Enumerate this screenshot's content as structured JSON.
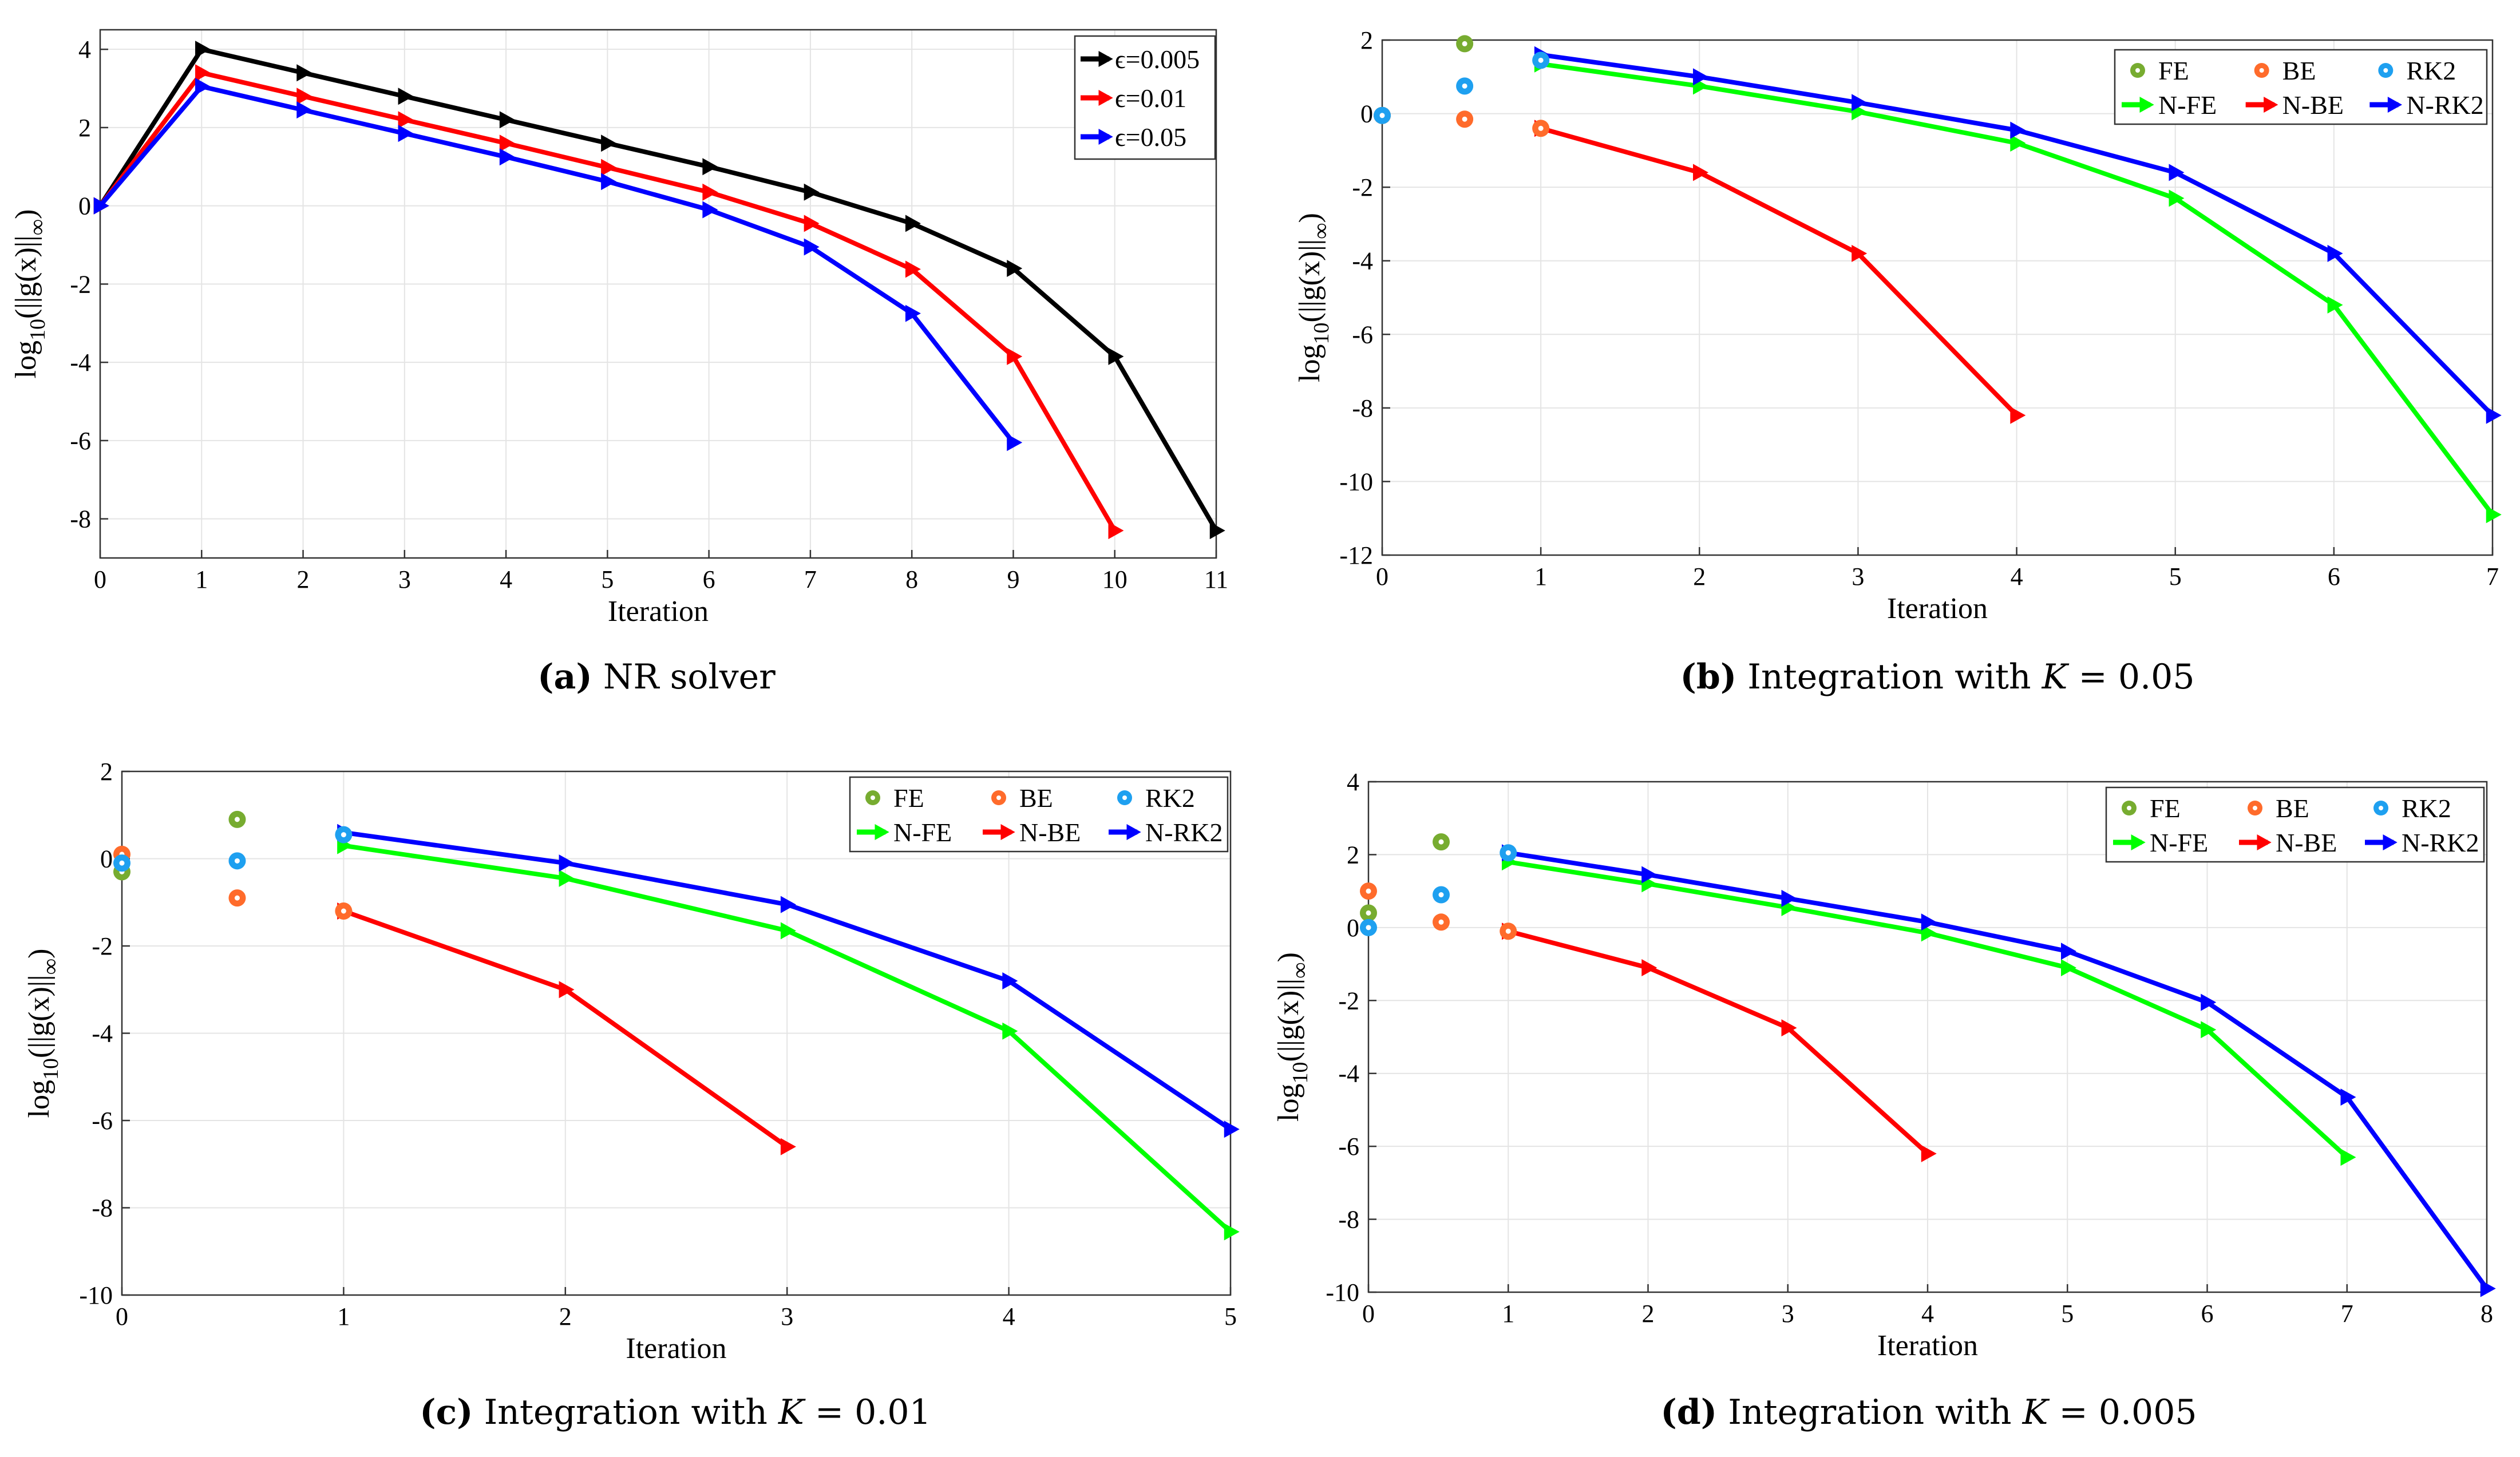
{
  "chart_data": [
    {
      "id": "a",
      "type": "line",
      "caption": {
        "label": "(a)",
        "text": " NR solver"
      },
      "xlabel": "Iteration",
      "ylabel": "log10(||g(x)||∞)",
      "xlim": [
        0,
        11
      ],
      "ylim": [
        -9,
        4.5
      ],
      "xticks": [
        0,
        1,
        2,
        3,
        4,
        5,
        6,
        7,
        8,
        9,
        10,
        11
      ],
      "yticks": [
        -8,
        -6,
        -4,
        -2,
        0,
        2,
        4
      ],
      "legend_position": "top-right",
      "legend_columns": 1,
      "series": [
        {
          "name": "ϵ=0.005",
          "color": "#000000",
          "marker": "triangle",
          "x": [
            0,
            1,
            2,
            3,
            4,
            5,
            6,
            7,
            8,
            9,
            10,
            11
          ],
          "y": [
            0,
            4.0,
            3.4,
            2.8,
            2.2,
            1.6,
            1.0,
            0.35,
            -0.45,
            -1.6,
            -3.85,
            -8.3
          ]
        },
        {
          "name": "ϵ=0.01",
          "color": "#ff0000",
          "marker": "triangle",
          "x": [
            0,
            1,
            2,
            3,
            4,
            5,
            6,
            7,
            8,
            9,
            10
          ],
          "y": [
            0,
            3.4,
            2.8,
            2.2,
            1.6,
            0.98,
            0.35,
            -0.45,
            -1.62,
            -3.85,
            -8.3
          ]
        },
        {
          "name": "ϵ=0.05",
          "color": "#0000ff",
          "marker": "triangle",
          "x": [
            0,
            1,
            2,
            3,
            4,
            5,
            6,
            7,
            8,
            9
          ],
          "y": [
            0,
            3.05,
            2.45,
            1.85,
            1.25,
            0.62,
            -0.1,
            -1.05,
            -2.75,
            -6.05
          ]
        }
      ]
    },
    {
      "id": "b",
      "type": "line",
      "caption": {
        "label": "(b)",
        "text": " Integration with ",
        "kvar": "K",
        "value": " = 0.05"
      },
      "xlabel": "Iteration",
      "ylabel": "log10(||g(x)||∞)",
      "xlim": [
        0,
        7
      ],
      "ylim": [
        -12,
        2
      ],
      "xticks": [
        0,
        1,
        2,
        3,
        4,
        5,
        6,
        7
      ],
      "yticks": [
        -12,
        -10,
        -8,
        -6,
        -4,
        -2,
        0,
        2
      ],
      "legend_position": "top-right",
      "legend_columns": 3,
      "scatter": [
        {
          "name": "FE",
          "color": "#77ac30",
          "x": [
            0.0,
            0.52
          ],
          "y": [
            -0.05,
            1.9
          ]
        },
        {
          "name": "BE",
          "color": "#ff6b2b",
          "x": [
            0.0,
            0.52,
            1.0
          ],
          "y": [
            -0.05,
            -0.15,
            -0.4
          ]
        },
        {
          "name": "RK2",
          "color": "#1ea0f0",
          "x": [
            0.0,
            0.52,
            1.0
          ],
          "y": [
            -0.05,
            0.75,
            1.45
          ]
        }
      ],
      "series": [
        {
          "name": "N-FE",
          "color": "#00ff00",
          "marker": "triangle",
          "x": [
            1,
            2,
            3,
            4,
            5,
            6,
            7
          ],
          "y": [
            1.35,
            0.75,
            0.05,
            -0.8,
            -2.3,
            -5.2,
            -10.9
          ]
        },
        {
          "name": "N-BE",
          "color": "#ff0000",
          "marker": "triangle",
          "x": [
            1,
            2,
            3,
            4
          ],
          "y": [
            -0.4,
            -1.6,
            -3.8,
            -8.2
          ]
        },
        {
          "name": "N-RK2",
          "color": "#0000ff",
          "marker": "triangle",
          "x": [
            1,
            2,
            3,
            4,
            5,
            6,
            7
          ],
          "y": [
            1.6,
            1.0,
            0.3,
            -0.45,
            -1.6,
            -3.8,
            -8.2
          ]
        }
      ]
    },
    {
      "id": "c",
      "type": "line",
      "caption": {
        "label": "(c)",
        "text": " Integration with ",
        "kvar": "K",
        "value": " = 0.01"
      },
      "xlabel": "Iteration",
      "ylabel": "log10(||g(x)||∞)",
      "xlim": [
        0,
        5
      ],
      "ylim": [
        -10,
        2
      ],
      "xticks": [
        0,
        1,
        2,
        3,
        4,
        5
      ],
      "yticks": [
        -10,
        -8,
        -6,
        -4,
        -2,
        0,
        2
      ],
      "legend_position": "top-right",
      "legend_columns": 3,
      "scatter": [
        {
          "name": "FE",
          "color": "#77ac30",
          "x": [
            0.0,
            0.52
          ],
          "y": [
            -0.3,
            0.9
          ]
        },
        {
          "name": "BE",
          "color": "#ff6b2b",
          "x": [
            0.0,
            0.52,
            1.0
          ],
          "y": [
            0.1,
            -0.9,
            -1.2
          ]
        },
        {
          "name": "RK2",
          "color": "#1ea0f0",
          "x": [
            0.0,
            0.52,
            1.0
          ],
          "y": [
            -0.1,
            -0.05,
            0.55
          ]
        }
      ],
      "series": [
        {
          "name": "N-FE",
          "color": "#00ff00",
          "marker": "triangle",
          "x": [
            1,
            2,
            3,
            4,
            5
          ],
          "y": [
            0.3,
            -0.45,
            -1.65,
            -3.95,
            -8.55
          ]
        },
        {
          "name": "N-BE",
          "color": "#ff0000",
          "marker": "triangle",
          "x": [
            1,
            2,
            3
          ],
          "y": [
            -1.2,
            -3.0,
            -6.6
          ]
        },
        {
          "name": "N-RK2",
          "color": "#0000ff",
          "marker": "triangle",
          "x": [
            1,
            2,
            3,
            4,
            5
          ],
          "y": [
            0.6,
            -0.1,
            -1.05,
            -2.8,
            -6.2
          ]
        }
      ]
    },
    {
      "id": "d",
      "type": "line",
      "caption": {
        "label": "(d)",
        "text": " Integration with ",
        "kvar": "K",
        "value": " = 0.005"
      },
      "xlabel": "Iteration",
      "ylabel": "log10(||g(x)||∞)",
      "xlim": [
        0,
        8
      ],
      "ylim": [
        -10,
        4
      ],
      "xticks": [
        0,
        1,
        2,
        3,
        4,
        5,
        6,
        7,
        8
      ],
      "yticks": [
        -10,
        -8,
        -6,
        -4,
        -2,
        0,
        2,
        4
      ],
      "legend_position": "top-right",
      "legend_columns": 3,
      "scatter": [
        {
          "name": "FE",
          "color": "#77ac30",
          "x": [
            0.0,
            0.52
          ],
          "y": [
            0.4,
            2.35
          ]
        },
        {
          "name": "BE",
          "color": "#ff6b2b",
          "x": [
            0.0,
            0.52,
            1.0
          ],
          "y": [
            1.0,
            0.15,
            -0.1
          ]
        },
        {
          "name": "RK2",
          "color": "#1ea0f0",
          "x": [
            0.0,
            0.52,
            1.0
          ],
          "y": [
            0.0,
            0.9,
            2.05
          ]
        }
      ],
      "series": [
        {
          "name": "N-FE",
          "color": "#00ff00",
          "marker": "triangle",
          "x": [
            1,
            2,
            3,
            4,
            5,
            6,
            7
          ],
          "y": [
            1.8,
            1.2,
            0.55,
            -0.15,
            -1.1,
            -2.8,
            -6.3
          ]
        },
        {
          "name": "N-BE",
          "color": "#ff0000",
          "marker": "triangle",
          "x": [
            1,
            2,
            3,
            4
          ],
          "y": [
            -0.1,
            -1.1,
            -2.75,
            -6.2
          ]
        },
        {
          "name": "N-RK2",
          "color": "#0000ff",
          "marker": "triangle",
          "x": [
            1,
            2,
            3,
            4,
            5,
            6,
            7,
            8
          ],
          "y": [
            2.05,
            1.45,
            0.8,
            0.15,
            -0.65,
            -2.05,
            -4.65,
            -9.9
          ]
        }
      ]
    }
  ]
}
